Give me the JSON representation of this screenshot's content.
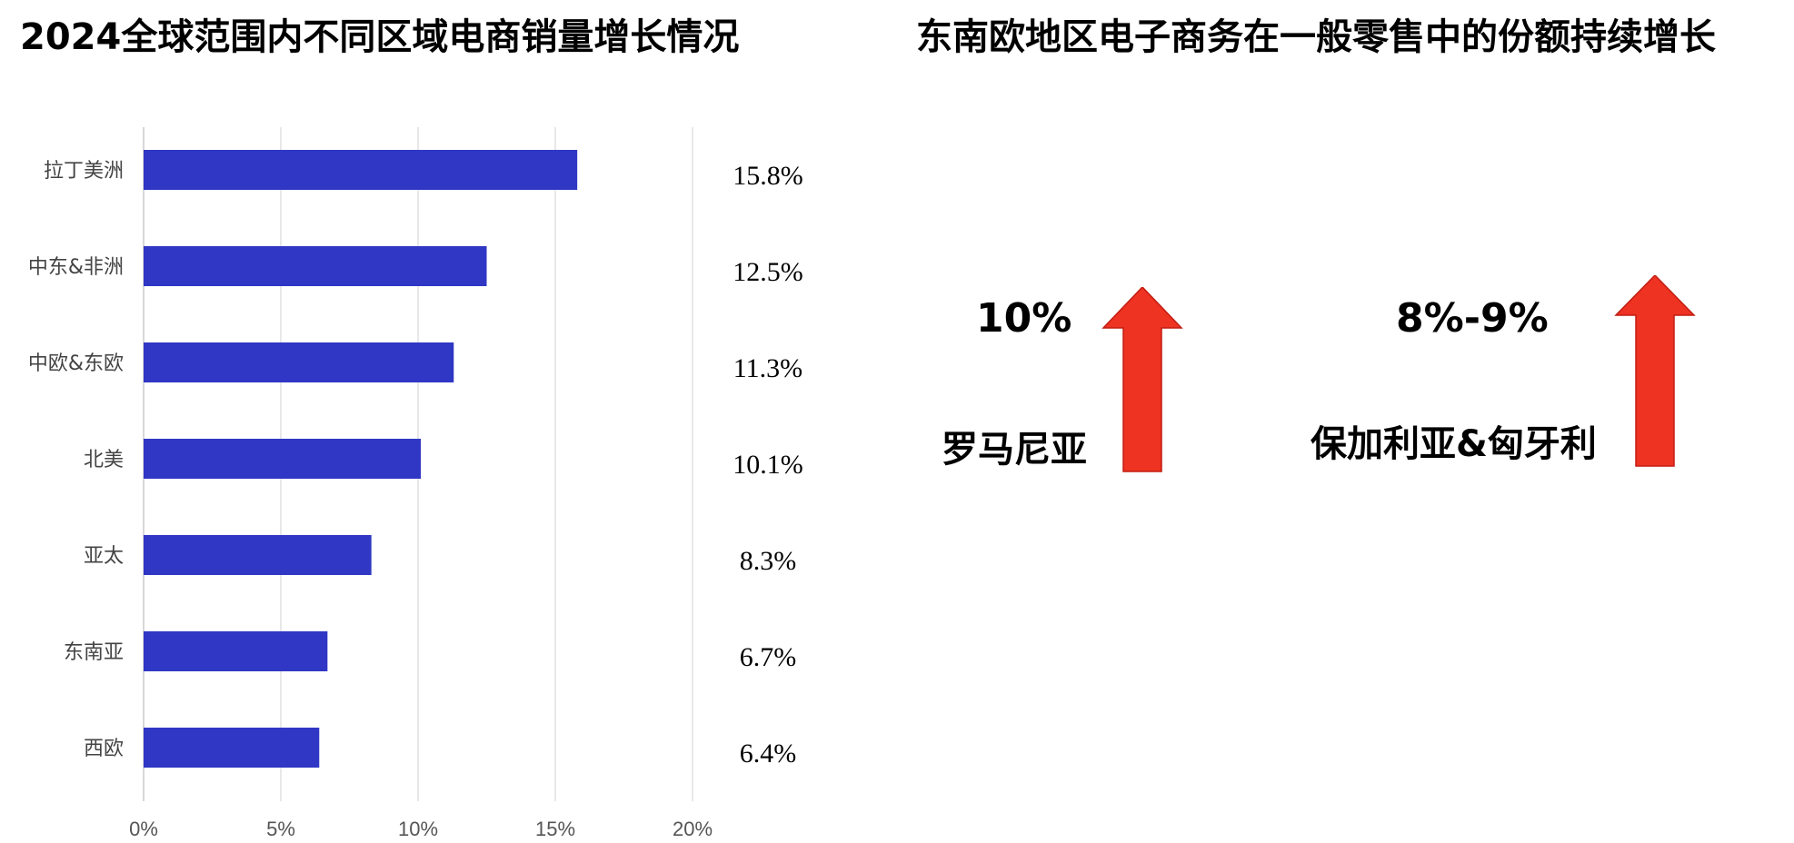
{
  "left_title": "2024全球范围内不同区域电商销量增长情况",
  "right_title": "东南欧地区电子商务在一般零售中的份额持续增长",
  "chart_data": {
    "type": "bar",
    "orientation": "horizontal",
    "categories": [
      "拉丁美洲",
      "中东&非洲",
      "中欧&东欧",
      "北美",
      "亚太",
      "东南亚",
      "西欧"
    ],
    "values": [
      15.8,
      12.5,
      11.3,
      10.1,
      8.3,
      6.7,
      6.4
    ],
    "value_labels": [
      "15.8%",
      "12.5%",
      "11.3%",
      "10.1%",
      "8.3%",
      "6.7%",
      "6.4%"
    ],
    "xlim": [
      0,
      20
    ],
    "xticks": [
      0,
      5,
      10,
      15,
      20
    ],
    "xtick_labels": [
      "0%",
      "5%",
      "10%",
      "15%",
      "20%"
    ],
    "grid": true,
    "bar_color": "#2F37C4"
  },
  "callouts": [
    {
      "percent": "10%",
      "region": "罗马尼亚"
    },
    {
      "percent": "8%-9%",
      "region": "保加利亚&匈牙利"
    }
  ],
  "arrow_color": "#EE3322",
  "arrow_icon": "up-arrow-icon"
}
